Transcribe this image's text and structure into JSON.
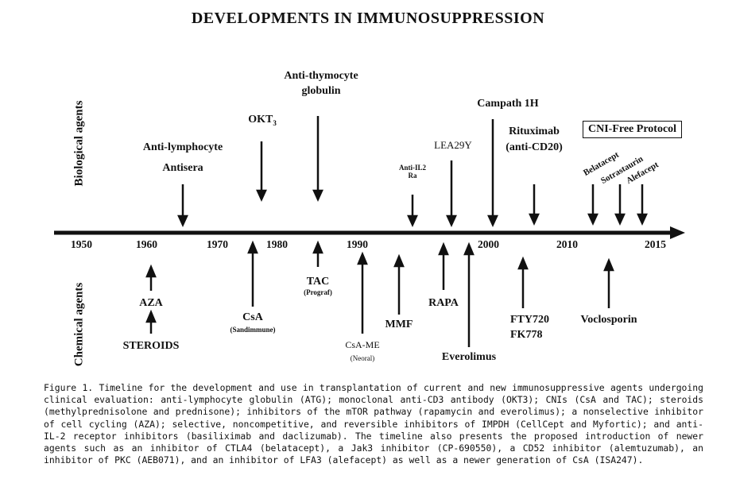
{
  "title": "DEVELOPMENTS IN IMMUNOSUPPRESSION",
  "axis_labels": {
    "biological": "Biological agents",
    "chemical": "Chemical agents"
  },
  "years": [
    "1950",
    "1960",
    "1970",
    "1980",
    "1990",
    "2000",
    "2010",
    "2015"
  ],
  "biological": {
    "anti_lymphocyte": [
      "Anti-lymphocyte",
      "Antisera"
    ],
    "okt3": "OKT",
    "okt3_sub": "3",
    "atg": [
      "Anti-thymocyte",
      "globulin"
    ],
    "anti_il2": [
      "Anti-IL2",
      "Ra"
    ],
    "lea29y": "LEA29Y",
    "campath": "Campath 1H",
    "rituximab": [
      "Rituximab",
      "(anti-CD20)"
    ],
    "cni_free": "CNI-Free Protocol",
    "belatacept": "Belatacept",
    "sotrastaurin": "Sotrastaurin",
    "alefacept": "Alefacept"
  },
  "chemical": {
    "aza": "AZA",
    "steroids": "STEROIDS",
    "csa": "CsA",
    "csa_sub": "(Sandimmune)",
    "tac": "TAC",
    "tac_sub": "(Prograf)",
    "csa_me": "CsA-ME",
    "csa_me_sub": "(Neoral)",
    "mmf": "MMF",
    "rapa": "RAPA",
    "everolimus": "Everolimus",
    "fty720": "FTY720",
    "fk778": "FK778",
    "voclosporin": "Voclosporin"
  },
  "caption": "Figure 1.   Timeline for the development and use in transplantation of current and new immunosuppressive agents undergoing clinical evaluation: anti-lymphocyte globulin (ATG); monoclonal anti-CD3 antibody (OKT3); CNIs (CsA and TAC); steroids (methylprednisolone and prednisone); inhibitors of the mTOR pathway (rapamycin and everolimus); a nonselective inhibitor of cell cycling (AZA); selective, noncompetitive, and reversible inhibitors of IMPDH (CellCept and Myfortic); and anti-IL-2 receptor inhibitors (basiliximab and daclizumab). The timeline also presents the proposed introduction of newer agents such as an inhibitor of CTLA4 (belatacept), a Jak3 inhibitor (CP-690550), a CD52 inhibitor (alemtuzumab), an inhibitor of PKC (AEB071), and an inhibitor of LFA3 (alefacept) as well as a newer generation of CsA (ISA247)."
}
